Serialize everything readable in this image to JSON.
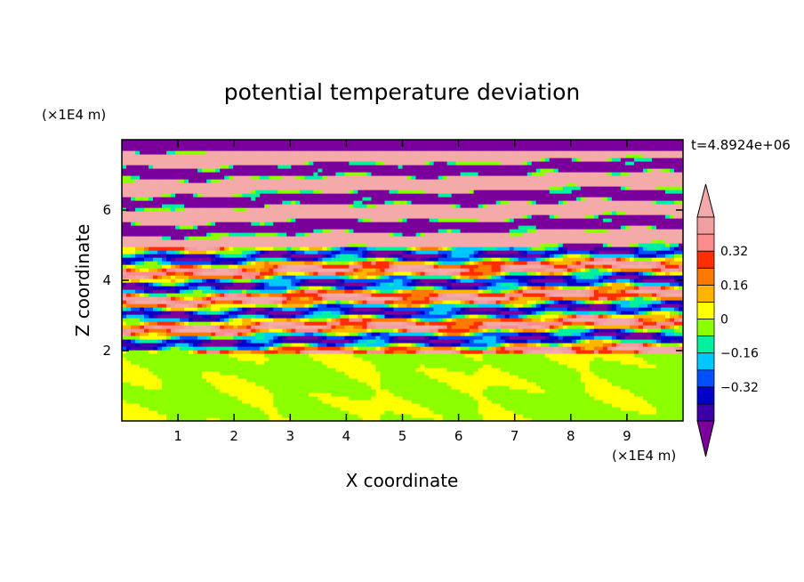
{
  "chart_data": {
    "type": "heatmap",
    "title": "potential temperature deviation",
    "xlabel": "X coordinate",
    "ylabel": "Z coordinate",
    "x_unit": "(×1E4 m)",
    "y_unit": "(×1E4 m)",
    "time_label": "t=4.8924e+06",
    "xlim": [
      0,
      10
    ],
    "ylim": [
      0,
      8
    ],
    "x_ticks": [
      "1",
      "2",
      "3",
      "4",
      "5",
      "6",
      "7",
      "8",
      "9"
    ],
    "x_tick_values": [
      1,
      2,
      3,
      4,
      5,
      6,
      7,
      8,
      9
    ],
    "y_ticks": [
      "2",
      "4",
      "6"
    ],
    "y_tick_values": [
      2,
      4,
      6
    ],
    "colorbar": {
      "labels": [
        "0.32",
        "0.16",
        "0",
        "−0.16",
        "−0.32"
      ],
      "label_values": [
        0.32,
        0.16,
        0,
        -0.16,
        -0.32
      ],
      "levels": [
        -0.48,
        -0.4,
        -0.32,
        -0.24,
        -0.16,
        -0.08,
        0,
        0.08,
        0.16,
        0.24,
        0.32,
        0.4,
        0.48
      ],
      "colors": [
        "#7b009b",
        "#3c00aa",
        "#0000c8",
        "#0050ff",
        "#00c8ff",
        "#00f0a0",
        "#8cff00",
        "#ffff00",
        "#ffb400",
        "#ff7800",
        "#ff2d00",
        "#ff8c8c",
        "#f0a0a0",
        "#f5aaaa"
      ],
      "extend": "both"
    },
    "regions": [
      {
        "z_range": [
          0,
          2
        ],
        "value_range": [
          -0.08,
          0.08
        ],
        "description_colors": [
          "#00f0a0",
          "#8cff00"
        ]
      },
      {
        "z_range": [
          2,
          5
        ],
        "value_range": [
          -0.48,
          0.48
        ]
      },
      {
        "z_range": [
          5,
          8
        ],
        "value_range": [
          -0.48,
          0.48
        ],
        "dominant_colors": [
          "#f5aaaa",
          "#7b009b"
        ]
      }
    ]
  }
}
